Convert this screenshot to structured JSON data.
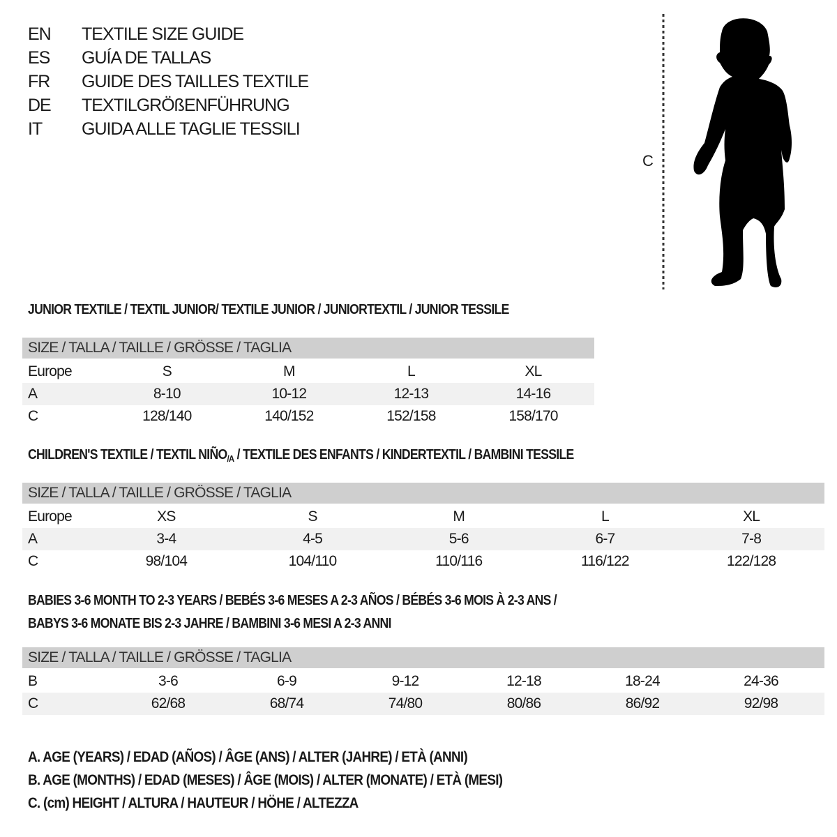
{
  "titles": [
    {
      "code": "EN",
      "text": "TEXTILE SIZE GUIDE"
    },
    {
      "code": "ES",
      "text": "GUÍA DE TALLAS"
    },
    {
      "code": "FR",
      "text": "GUIDE DES TAILLES TEXTILE"
    },
    {
      "code": "DE",
      "text": "TEXTILGRÖßENFÜHRUNG"
    },
    {
      "code": "IT",
      "text": "GUIDA ALLE TAGLIE TESSILI"
    }
  ],
  "figure": {
    "measure_label": "C",
    "icon": "child-silhouette-icon"
  },
  "junior": {
    "title": "JUNIOR TEXTILE / TEXTIL JUNIOR/ TEXTILE JUNIOR / JUNIORTEXTIL / JUNIOR TESSILE",
    "header": "SIZE / TALLA / TAILLE / GRÖSSE / TAGLIA",
    "rows": [
      {
        "label": "Europe",
        "values": [
          "S",
          "M",
          "L",
          "XL"
        ]
      },
      {
        "label": "A",
        "values": [
          "8-10",
          "10-12",
          "12-13",
          "14-16"
        ]
      },
      {
        "label": "C",
        "values": [
          "128/140",
          "140/152",
          "152/158",
          "158/170"
        ]
      }
    ]
  },
  "children": {
    "title_pre": "CHILDREN'S TEXTILE / TEXTIL NIÑO",
    "title_sub": "/A",
    "title_post": " / TEXTILE DES ENFANTS / KINDERTEXTIL / BAMBINI TESSILE",
    "header": "SIZE / TALLA / TAILLE / GRÖSSE / TAGLIA",
    "rows": [
      {
        "label": "Europe",
        "values": [
          "XS",
          "S",
          "M",
          "L",
          "XL"
        ]
      },
      {
        "label": "A",
        "values": [
          "3-4",
          "4-5",
          "5-6",
          "6-7",
          "7-8"
        ]
      },
      {
        "label": "C",
        "values": [
          "98/104",
          "104/110",
          "110/116",
          "116/122",
          "122/128"
        ]
      }
    ]
  },
  "babies": {
    "title_line1": "BABIES 3-6 MONTH TO 2-3 YEARS / BEBÉS 3-6 MESES A 2-3 AÑOS / BÉBÉS 3-6 MOIS À 2-3 ANS /",
    "title_line2": "BABYS 3-6 MONATE BIS 2-3 JAHRE / BAMBINI 3-6 MESI A 2-3 ANNI",
    "header": "SIZE / TALLA / TAILLE / GRÖSSE / TAGLIA",
    "rows": [
      {
        "label": "B",
        "values": [
          "3-6",
          "6-9",
          "9-12",
          "12-18",
          "18-24",
          "24-36"
        ]
      },
      {
        "label": "C",
        "values": [
          "62/68",
          "68/74",
          "74/80",
          "80/86",
          "86/92",
          "92/98"
        ]
      }
    ]
  },
  "legend": [
    "A. AGE (YEARS) / EDAD (AÑOS) / ÂGE (ANS) / ALTER (JAHRE) / ETÀ (ANNI)",
    "B. AGE (MONTHS) / EDAD (MESES) / ÂGE (MOIS) / ALTER (MONATE) / ETÀ (MESI)",
    "C. (cm) HEIGHT / ALTURA / HAUTEUR / HÖHE / ALTEZZA"
  ],
  "colors": {
    "header_bg": "#cfcfcf",
    "shade_bg": "#f1f1f1",
    "text": "#1a1a1a"
  }
}
